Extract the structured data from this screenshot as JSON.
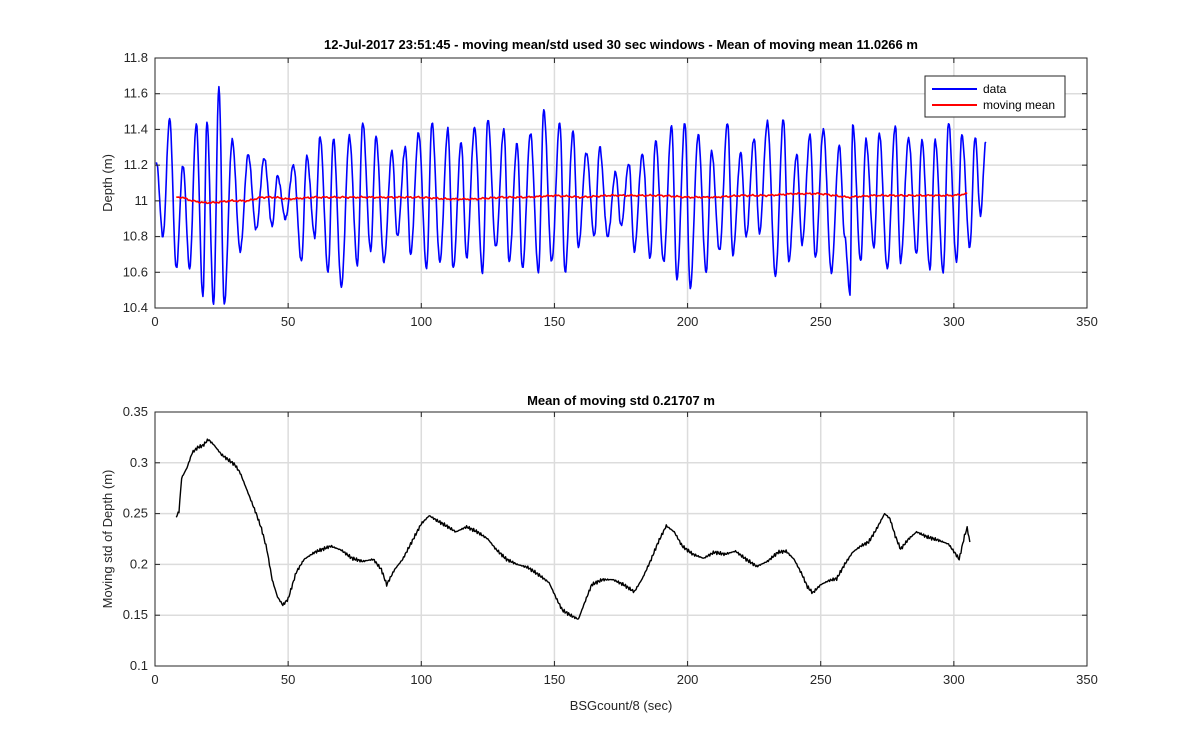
{
  "chart_data": [
    {
      "type": "line",
      "title": "12-Jul-2017 23:51:45 - moving mean/std used 30 sec windows - Mean of moving mean 11.0266 m",
      "xlabel": "",
      "ylabel": "Depth (m)",
      "xlim": [
        0,
        350
      ],
      "ylim": [
        10.4,
        11.8
      ],
      "xticks": [
        0,
        50,
        100,
        150,
        200,
        250,
        300,
        350
      ],
      "yticks": [
        10.4,
        10.6,
        10.8,
        11,
        11.2,
        11.4,
        11.6,
        11.8
      ],
      "ytick_labels": [
        "10.4",
        "10.6",
        "10.8",
        "11",
        "11.2",
        "11.4",
        "11.6",
        "11.8"
      ],
      "grid": true,
      "legend": "top-right",
      "series": [
        {
          "name": "data",
          "color": "#0000ff",
          "x_start": 0,
          "x_end": 312,
          "dominant_period_sec": 5.2,
          "peaks": [
            [
              0.5,
              11.22
            ],
            [
              5.5,
              11.46
            ],
            [
              10.5,
              11.2
            ],
            [
              15.5,
              11.43
            ],
            [
              19.5,
              11.45
            ],
            [
              24,
              11.64
            ],
            [
              29,
              11.34
            ],
            [
              35,
              11.26
            ],
            [
              41,
              11.24
            ],
            [
              46,
              11.14
            ],
            [
              52,
              11.2
            ],
            [
              57,
              11.25
            ],
            [
              62,
              11.36
            ],
            [
              67,
              11.35
            ],
            [
              73,
              11.36
            ],
            [
              78,
              11.44
            ],
            [
              83,
              11.36
            ],
            [
              89,
              11.28
            ],
            [
              94,
              11.3
            ],
            [
              99,
              11.38
            ],
            [
              104,
              11.44
            ],
            [
              110,
              11.4
            ],
            [
              115,
              11.33
            ],
            [
              120,
              11.41
            ],
            [
              125,
              11.46
            ],
            [
              131,
              11.4
            ],
            [
              136,
              11.32
            ],
            [
              141,
              11.38
            ],
            [
              146,
              11.51
            ],
            [
              152,
              11.44
            ],
            [
              157,
              11.39
            ],
            [
              162,
              11.27
            ],
            [
              167,
              11.3
            ],
            [
              173,
              11.16
            ],
            [
              178,
              11.21
            ],
            [
              183,
              11.26
            ],
            [
              188,
              11.34
            ],
            [
              194,
              11.42
            ],
            [
              199,
              11.44
            ],
            [
              204,
              11.37
            ],
            [
              209,
              11.28
            ],
            [
              215,
              11.44
            ],
            [
              220,
              11.27
            ],
            [
              225,
              11.35
            ],
            [
              230,
              11.44
            ],
            [
              236,
              11.46
            ],
            [
              241,
              11.26
            ],
            [
              246,
              11.37
            ],
            [
              251,
              11.4
            ],
            [
              257,
              11.31
            ],
            [
              262,
              11.43
            ],
            [
              267,
              11.34
            ],
            [
              272,
              11.38
            ],
            [
              278,
              11.42
            ],
            [
              283,
              11.35
            ],
            [
              288,
              11.34
            ],
            [
              293,
              11.34
            ],
            [
              298,
              11.44
            ],
            [
              303,
              11.37
            ],
            [
              308,
              11.36
            ],
            [
              312,
              11.33
            ]
          ],
          "troughs": [
            [
              3,
              10.8
            ],
            [
              8,
              10.62
            ],
            [
              13,
              10.62
            ],
            [
              18,
              10.46
            ],
            [
              22,
              10.42
            ],
            [
              26,
              10.42
            ],
            [
              32,
              10.72
            ],
            [
              38,
              10.84
            ],
            [
              44,
              10.86
            ],
            [
              49,
              10.9
            ],
            [
              55,
              10.66
            ],
            [
              60,
              10.8
            ],
            [
              65,
              10.6
            ],
            [
              70,
              10.52
            ],
            [
              76,
              10.64
            ],
            [
              81,
              10.72
            ],
            [
              86,
              10.66
            ],
            [
              91,
              10.8
            ],
            [
              96,
              10.7
            ],
            [
              102,
              10.62
            ],
            [
              107,
              10.66
            ],
            [
              112,
              10.62
            ],
            [
              117,
              10.68
            ],
            [
              123,
              10.6
            ],
            [
              128,
              10.74
            ],
            [
              133,
              10.66
            ],
            [
              138,
              10.62
            ],
            [
              144,
              10.6
            ],
            [
              149,
              10.66
            ],
            [
              154,
              10.6
            ],
            [
              159,
              10.74
            ],
            [
              165,
              10.8
            ],
            [
              170,
              10.8
            ],
            [
              175,
              10.86
            ],
            [
              180,
              10.72
            ],
            [
              186,
              10.68
            ],
            [
              191,
              10.66
            ],
            [
              196,
              10.56
            ],
            [
              201,
              10.51
            ],
            [
              207,
              10.6
            ],
            [
              212,
              10.72
            ],
            [
              217,
              10.7
            ],
            [
              222,
              10.8
            ],
            [
              227,
              10.82
            ],
            [
              233,
              10.58
            ],
            [
              238,
              10.66
            ],
            [
              243,
              10.76
            ],
            [
              248,
              10.68
            ],
            [
              254,
              10.6
            ],
            [
              259,
              10.8
            ],
            [
              261,
              10.48
            ],
            [
              265,
              10.66
            ],
            [
              270,
              10.74
            ],
            [
              275,
              10.62
            ],
            [
              280,
              10.66
            ],
            [
              286,
              10.7
            ],
            [
              291,
              10.62
            ],
            [
              296,
              10.6
            ],
            [
              301,
              10.66
            ],
            [
              306,
              10.74
            ],
            [
              310,
              10.92
            ]
          ]
        },
        {
          "name": "moving mean",
          "color": "#ff0000",
          "points": [
            [
              8,
              11.02
            ],
            [
              10,
              11.02
            ],
            [
              14,
              11.0
            ],
            [
              18,
              10.99
            ],
            [
              22,
              10.99
            ],
            [
              28,
              11.0
            ],
            [
              35,
              11.0
            ],
            [
              40,
              11.02
            ],
            [
              45,
              11.02
            ],
            [
              50,
              11.01
            ],
            [
              60,
              11.02
            ],
            [
              70,
              11.02
            ],
            [
              80,
              11.02
            ],
            [
              90,
              11.02
            ],
            [
              100,
              11.02
            ],
            [
              110,
              11.01
            ],
            [
              120,
              11.01
            ],
            [
              130,
              11.02
            ],
            [
              140,
              11.02
            ],
            [
              150,
              11.03
            ],
            [
              160,
              11.02
            ],
            [
              170,
              11.03
            ],
            [
              180,
              11.03
            ],
            [
              190,
              11.03
            ],
            [
              200,
              11.02
            ],
            [
              210,
              11.02
            ],
            [
              220,
              11.03
            ],
            [
              230,
              11.03
            ],
            [
              240,
              11.04
            ],
            [
              250,
              11.04
            ],
            [
              260,
              11.02
            ],
            [
              270,
              11.03
            ],
            [
              280,
              11.03
            ],
            [
              290,
              11.03
            ],
            [
              300,
              11.03
            ],
            [
              305,
              11.04
            ]
          ]
        }
      ]
    },
    {
      "type": "line",
      "title": "Mean of moving std 0.21707 m",
      "xlabel": "BSGcount/8 (sec)",
      "ylabel": "Moving std of Depth (m)",
      "xlim": [
        0,
        350
      ],
      "ylim": [
        0.1,
        0.35
      ],
      "xticks": [
        0,
        50,
        100,
        150,
        200,
        250,
        300,
        350
      ],
      "yticks": [
        0.1,
        0.15,
        0.2,
        0.25,
        0.3,
        0.35
      ],
      "ytick_labels": [
        "0.1",
        "0.15",
        "0.2",
        "0.25",
        "0.3",
        "0.35"
      ],
      "grid": true,
      "series": [
        {
          "color": "#000000",
          "points": [
            [
              8,
              0.247
            ],
            [
              9,
              0.252
            ],
            [
              10,
              0.285
            ],
            [
              12,
              0.295
            ],
            [
              14,
              0.31
            ],
            [
              16,
              0.315
            ],
            [
              18,
              0.317
            ],
            [
              20,
              0.323
            ],
            [
              22,
              0.318
            ],
            [
              25,
              0.308
            ],
            [
              28,
              0.302
            ],
            [
              30,
              0.298
            ],
            [
              32,
              0.29
            ],
            [
              35,
              0.27
            ],
            [
              38,
              0.25
            ],
            [
              40,
              0.235
            ],
            [
              42,
              0.215
            ],
            [
              44,
              0.185
            ],
            [
              46,
              0.168
            ],
            [
              48,
              0.16
            ],
            [
              50,
              0.166
            ],
            [
              53,
              0.192
            ],
            [
              56,
              0.205
            ],
            [
              60,
              0.212
            ],
            [
              63,
              0.215
            ],
            [
              66,
              0.218
            ],
            [
              70,
              0.214
            ],
            [
              74,
              0.206
            ],
            [
              78,
              0.203
            ],
            [
              82,
              0.205
            ],
            [
              85,
              0.195
            ],
            [
              87,
              0.18
            ],
            [
              90,
              0.195
            ],
            [
              93,
              0.205
            ],
            [
              96,
              0.22
            ],
            [
              100,
              0.24
            ],
            [
              103,
              0.248
            ],
            [
              106,
              0.243
            ],
            [
              110,
              0.237
            ],
            [
              113,
              0.232
            ],
            [
              117,
              0.237
            ],
            [
              121,
              0.232
            ],
            [
              125,
              0.225
            ],
            [
              128,
              0.215
            ],
            [
              132,
              0.205
            ],
            [
              136,
              0.2
            ],
            [
              140,
              0.197
            ],
            [
              144,
              0.19
            ],
            [
              148,
              0.182
            ],
            [
              151,
              0.165
            ],
            [
              153,
              0.155
            ],
            [
              156,
              0.15
            ],
            [
              159,
              0.146
            ],
            [
              161,
              0.16
            ],
            [
              164,
              0.18
            ],
            [
              168,
              0.185
            ],
            [
              172,
              0.185
            ],
            [
              176,
              0.18
            ],
            [
              180,
              0.173
            ],
            [
              183,
              0.186
            ],
            [
              186,
              0.203
            ],
            [
              189,
              0.222
            ],
            [
              192,
              0.238
            ],
            [
              195,
              0.232
            ],
            [
              198,
              0.218
            ],
            [
              202,
              0.21
            ],
            [
              206,
              0.206
            ],
            [
              210,
              0.212
            ],
            [
              214,
              0.21
            ],
            [
              218,
              0.213
            ],
            [
              222,
              0.205
            ],
            [
              226,
              0.198
            ],
            [
              230,
              0.203
            ],
            [
              234,
              0.212
            ],
            [
              237,
              0.213
            ],
            [
              240,
              0.205
            ],
            [
              243,
              0.19
            ],
            [
              245,
              0.178
            ],
            [
              247,
              0.172
            ],
            [
              250,
              0.18
            ],
            [
              253,
              0.184
            ],
            [
              256,
              0.186
            ],
            [
              259,
              0.2
            ],
            [
              262,
              0.212
            ],
            [
              265,
              0.218
            ],
            [
              268,
              0.222
            ],
            [
              271,
              0.235
            ],
            [
              274,
              0.25
            ],
            [
              276,
              0.245
            ],
            [
              278,
              0.228
            ],
            [
              280,
              0.215
            ],
            [
              283,
              0.225
            ],
            [
              286,
              0.232
            ],
            [
              290,
              0.227
            ],
            [
              294,
              0.224
            ],
            [
              298,
              0.22
            ],
            [
              301,
              0.209
            ],
            [
              302,
              0.205
            ],
            [
              304,
              0.228
            ],
            [
              305,
              0.236
            ],
            [
              306,
              0.222
            ]
          ]
        }
      ]
    }
  ]
}
